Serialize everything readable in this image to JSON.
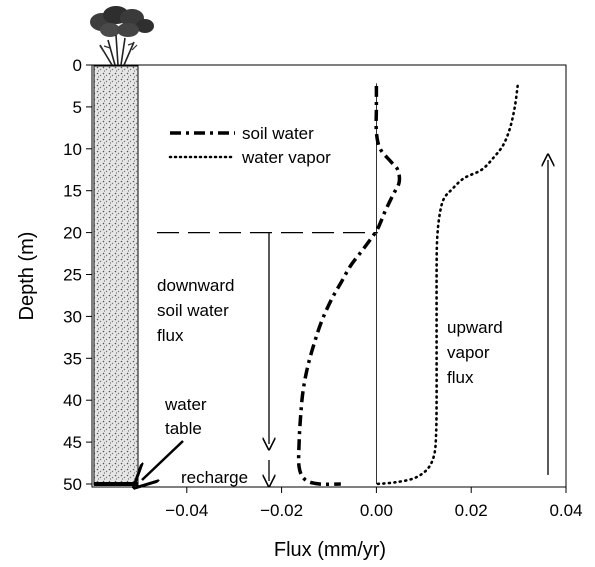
{
  "chart_data": {
    "type": "line",
    "title": "",
    "xlabel": "Flux (mm/yr)",
    "ylabel": "Depth (m)",
    "xlim": [
      -0.06,
      0.04
    ],
    "ylim": [
      0,
      50
    ],
    "y_inverted": true,
    "xticks": [
      -0.04,
      -0.02,
      0.0,
      0.02,
      0.04
    ],
    "xtick_labels": [
      "−0.04",
      "−0.02",
      "0.00",
      "0.02",
      "0.04"
    ],
    "yticks": [
      0,
      5,
      10,
      15,
      20,
      25,
      30,
      35,
      40,
      45,
      50
    ],
    "ytick_labels": [
      "0",
      "5",
      "10",
      "15",
      "20",
      "25",
      "30",
      "35",
      "40",
      "45",
      "50"
    ],
    "grid": false,
    "legend_position": "top-left",
    "series": [
      {
        "name": "soil water",
        "style": "dash-dot",
        "color": "#000000",
        "points": [
          [
            0.0,
            2.5
          ],
          [
            0.0,
            5
          ],
          [
            0.0,
            8
          ],
          [
            0.0008,
            10
          ],
          [
            0.003,
            11.5
          ],
          [
            0.0045,
            12.5
          ],
          [
            0.0048,
            14
          ],
          [
            0.0035,
            15.5
          ],
          [
            0.0018,
            17.5
          ],
          [
            0.0003,
            19.5
          ],
          [
            -0.0015,
            21
          ],
          [
            -0.0035,
            22.5
          ],
          [
            -0.0055,
            24
          ],
          [
            -0.0075,
            26
          ],
          [
            -0.0095,
            28
          ],
          [
            -0.0115,
            30.5
          ],
          [
            -0.013,
            33
          ],
          [
            -0.0145,
            36
          ],
          [
            -0.0155,
            39
          ],
          [
            -0.016,
            42
          ],
          [
            -0.0163,
            45
          ],
          [
            -0.0163,
            48
          ],
          [
            -0.015,
            49.5
          ],
          [
            -0.012,
            50
          ],
          [
            -0.0075,
            50
          ]
        ]
      },
      {
        "name": "water vapor",
        "style": "dotted",
        "color": "#000000",
        "points": [
          [
            0.0298,
            2.5
          ],
          [
            0.0292,
            5
          ],
          [
            0.0282,
            7.5
          ],
          [
            0.0268,
            9.5
          ],
          [
            0.0248,
            11
          ],
          [
            0.0222,
            12.5
          ],
          [
            0.0185,
            13.5
          ],
          [
            0.016,
            14.8
          ],
          [
            0.0142,
            16
          ],
          [
            0.0133,
            18
          ],
          [
            0.0128,
            21
          ],
          [
            0.0127,
            25
          ],
          [
            0.0127,
            30
          ],
          [
            0.0127,
            35
          ],
          [
            0.0127,
            40
          ],
          [
            0.0126,
            44
          ],
          [
            0.0122,
            46.5
          ],
          [
            0.0108,
            48.2
          ],
          [
            0.008,
            49.3
          ],
          [
            0.004,
            49.8
          ],
          [
            0.0,
            50
          ]
        ]
      }
    ],
    "annotations": {
      "downward": [
        "downward",
        "soil water",
        "flux"
      ],
      "upward": [
        "upward",
        "vapor",
        "flux"
      ],
      "water_table": [
        "water",
        "table"
      ],
      "recharge": "recharge"
    }
  },
  "colors": {
    "soil_column_fill": "#d8d8d8",
    "plant_green": "#4a4a4a",
    "foreground": "#000000",
    "background": "#ffffff"
  },
  "icons": {
    "plant": "plant-icon"
  }
}
